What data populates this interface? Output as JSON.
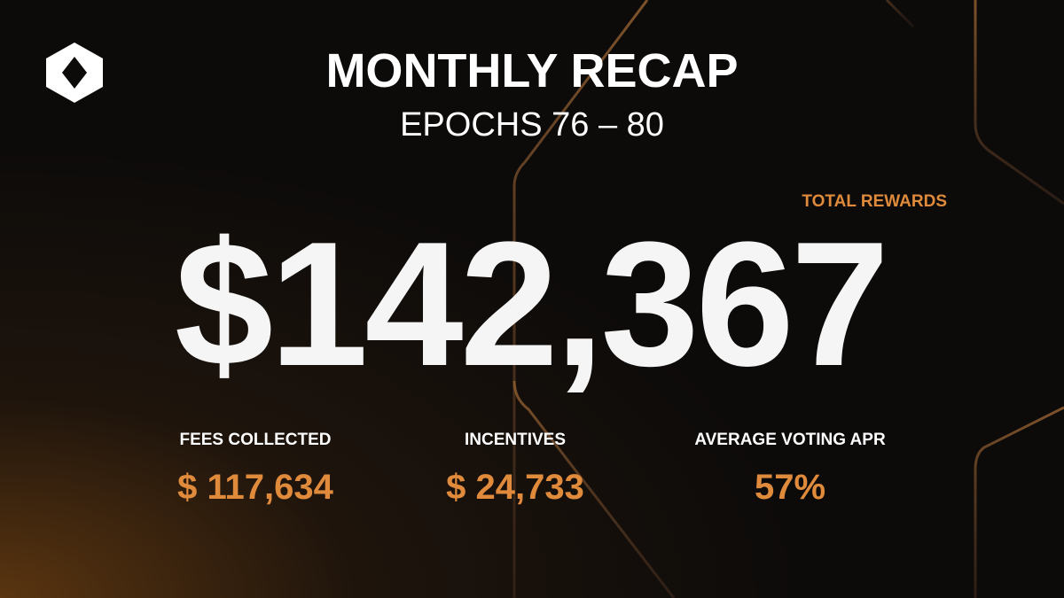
{
  "header": {
    "title": "MONTHLY RECAP",
    "subtitle": "EPOCHS 76 – 80"
  },
  "total": {
    "label": "TOTAL REWARDS",
    "value": "$142,367"
  },
  "stats": [
    {
      "label": "FEES COLLECTED",
      "value": "$ 117,634"
    },
    {
      "label": "INCENTIVES",
      "value": "$ 24,733"
    },
    {
      "label": "AVERAGE VOTING APR",
      "value": "57%"
    }
  ]
}
